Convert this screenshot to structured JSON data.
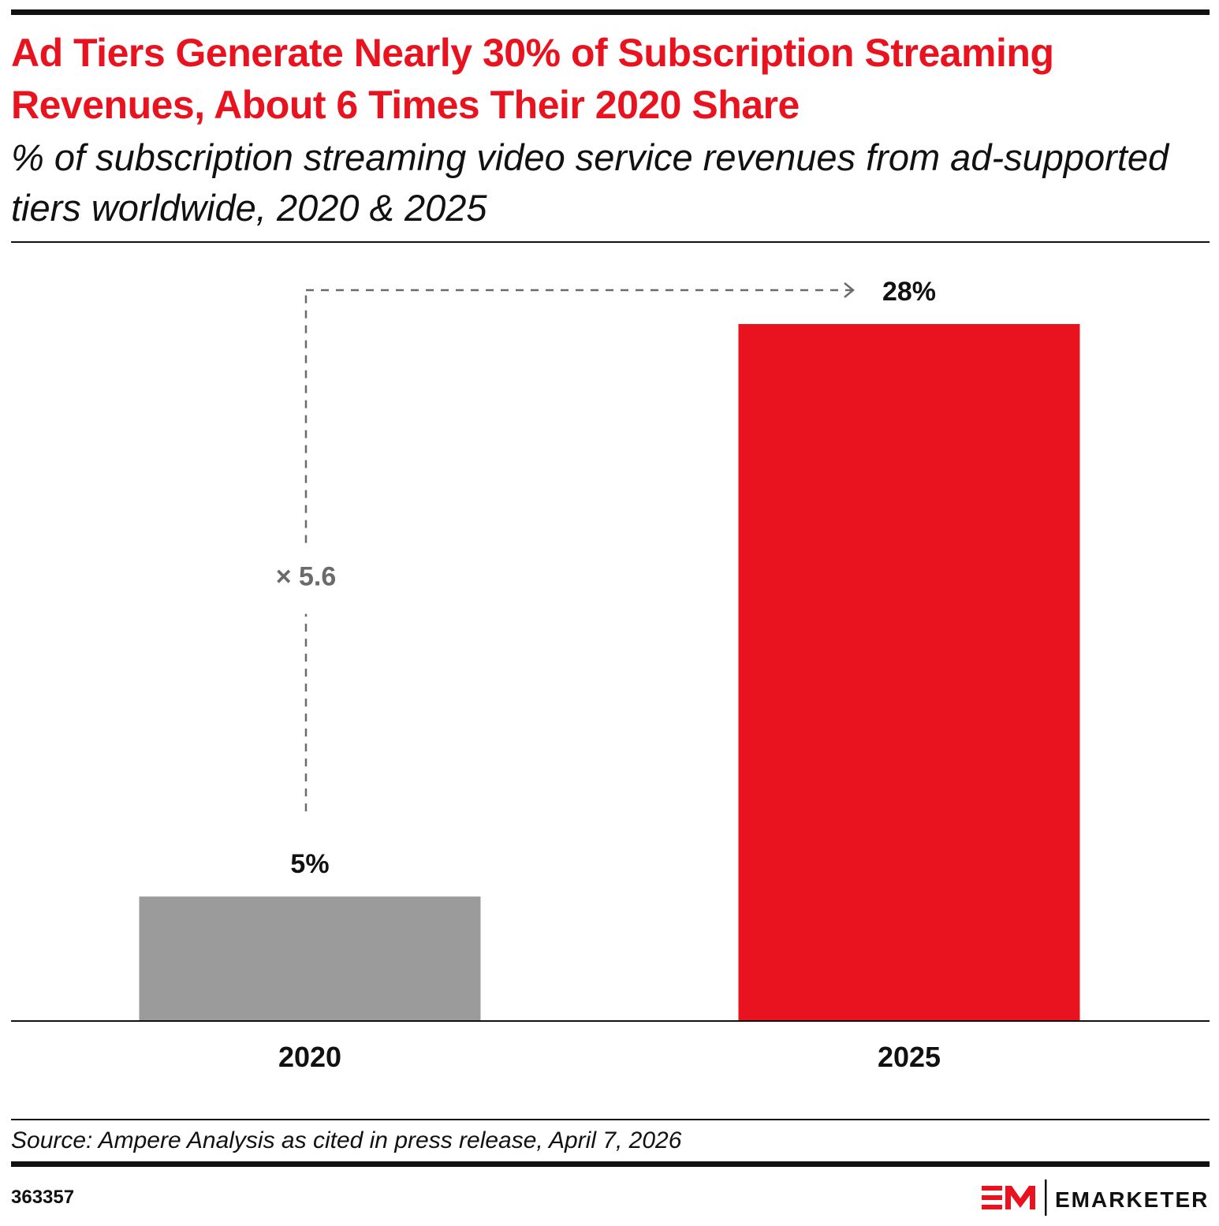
{
  "chart_data": {
    "type": "bar",
    "title": "Ad Tiers Generate Nearly 30% of Subscription Streaming Revenues, About 6 Times Their 2020 Share",
    "subtitle": "% of subscription streaming video service revenues from ad-supported tiers worldwide, 2020 & 2025",
    "categories": [
      "2020",
      "2025"
    ],
    "values": [
      5,
      28
    ],
    "value_labels": [
      "5%",
      "28%"
    ],
    "bar_colors": [
      "#9b9b9b",
      "#e8131f"
    ],
    "ylim": [
      0,
      28
    ],
    "grid": false,
    "annotation": {
      "text": "× 5.6",
      "color": "#6b6b6b"
    }
  },
  "footer": {
    "source": "Source: Ampere Analysis as cited in press release, April 7, 2026",
    "chart_id": "363357",
    "logo_icon": "emarketer-logo-icon",
    "brand": "EMARKETER",
    "brand_color": "#e8131f"
  }
}
